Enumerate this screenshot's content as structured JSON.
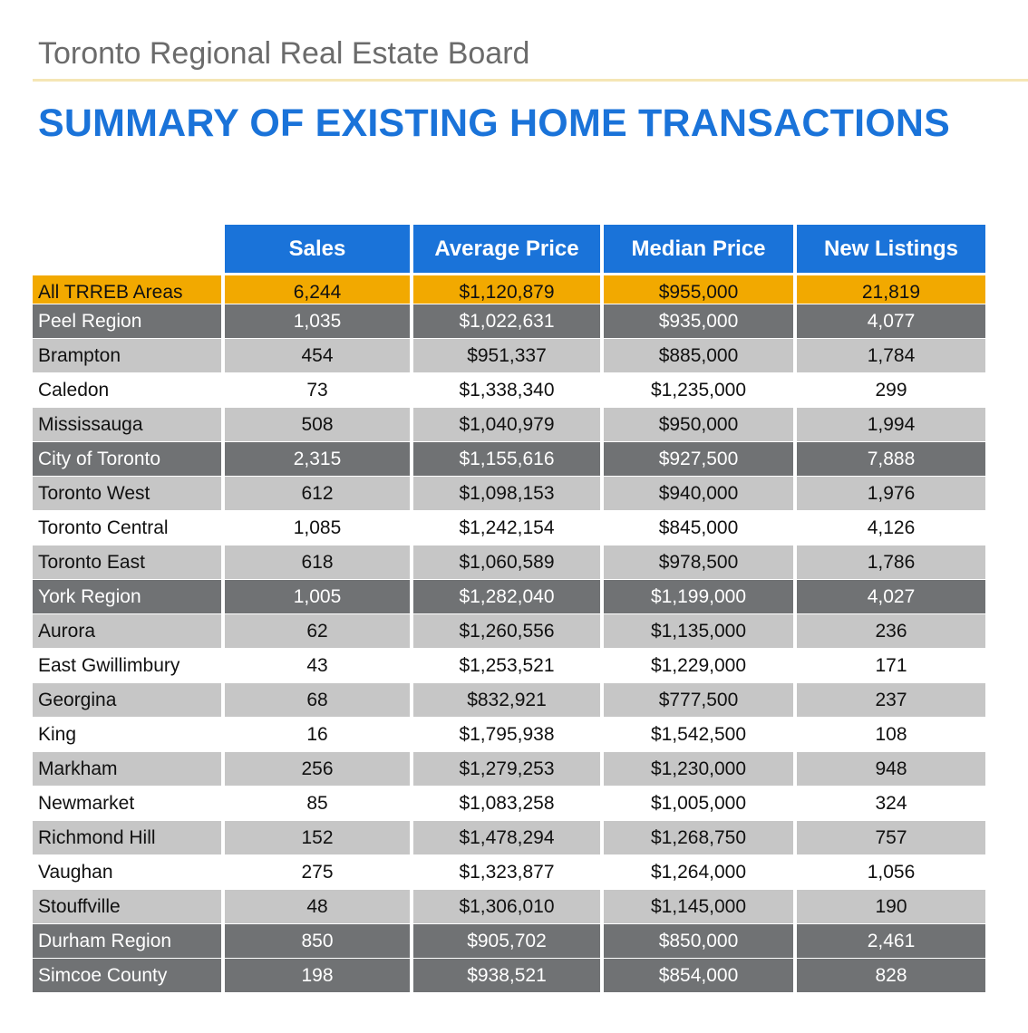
{
  "header": {
    "org": "Toronto Regional Real Estate Board",
    "title": "SUMMARY OF EXISTING HOME TRANSACTIONS"
  },
  "table": {
    "columns": [
      "Sales",
      "Average Price",
      "Median Price",
      "New Listings"
    ],
    "rows": [
      {
        "area": "All TRREB Areas",
        "sales": "6,244",
        "avg": "$1,120,879",
        "median": "$955,000",
        "listings": "21,819",
        "style": "orange"
      },
      {
        "area": "Peel Region",
        "sales": "1,035",
        "avg": "$1,022,631",
        "median": "$935,000",
        "listings": "4,077",
        "style": "dark"
      },
      {
        "area": "Brampton",
        "sales": "454",
        "avg": "$951,337",
        "median": "$885,000",
        "listings": "1,784",
        "style": "light"
      },
      {
        "area": "Caledon",
        "sales": "73",
        "avg": "$1,338,340",
        "median": "$1,235,000",
        "listings": "299",
        "style": "white"
      },
      {
        "area": "Mississauga",
        "sales": "508",
        "avg": "$1,040,979",
        "median": "$950,000",
        "listings": "1,994",
        "style": "light"
      },
      {
        "area": "City of Toronto",
        "sales": "2,315",
        "avg": "$1,155,616",
        "median": "$927,500",
        "listings": "7,888",
        "style": "dark"
      },
      {
        "area": "Toronto West",
        "sales": "612",
        "avg": "$1,098,153",
        "median": "$940,000",
        "listings": "1,976",
        "style": "light"
      },
      {
        "area": "Toronto Central",
        "sales": "1,085",
        "avg": "$1,242,154",
        "median": "$845,000",
        "listings": "4,126",
        "style": "white"
      },
      {
        "area": "Toronto East",
        "sales": "618",
        "avg": "$1,060,589",
        "median": "$978,500",
        "listings": "1,786",
        "style": "light"
      },
      {
        "area": "York Region",
        "sales": "1,005",
        "avg": "$1,282,040",
        "median": "$1,199,000",
        "listings": "4,027",
        "style": "dark"
      },
      {
        "area": "Aurora",
        "sales": "62",
        "avg": "$1,260,556",
        "median": "$1,135,000",
        "listings": "236",
        "style": "light"
      },
      {
        "area": "East Gwillimbury",
        "sales": "43",
        "avg": "$1,253,521",
        "median": "$1,229,000",
        "listings": "171",
        "style": "white"
      },
      {
        "area": "Georgina",
        "sales": "68",
        "avg": "$832,921",
        "median": "$777,500",
        "listings": "237",
        "style": "light"
      },
      {
        "area": "King",
        "sales": "16",
        "avg": "$1,795,938",
        "median": "$1,542,500",
        "listings": "108",
        "style": "white"
      },
      {
        "area": "Markham",
        "sales": "256",
        "avg": "$1,279,253",
        "median": "$1,230,000",
        "listings": "948",
        "style": "light"
      },
      {
        "area": "Newmarket",
        "sales": "85",
        "avg": "$1,083,258",
        "median": "$1,005,000",
        "listings": "324",
        "style": "white"
      },
      {
        "area": "Richmond Hill",
        "sales": "152",
        "avg": "$1,478,294",
        "median": "$1,268,750",
        "listings": "757",
        "style": "light"
      },
      {
        "area": "Vaughan",
        "sales": "275",
        "avg": "$1,323,877",
        "median": "$1,264,000",
        "listings": "1,056",
        "style": "white"
      },
      {
        "area": "Stouffville",
        "sales": "48",
        "avg": "$1,306,010",
        "median": "$1,145,000",
        "listings": "190",
        "style": "light"
      },
      {
        "area": "Durham Region",
        "sales": "850",
        "avg": "$905,702",
        "median": "$850,000",
        "listings": "2,461",
        "style": "dark"
      },
      {
        "area": "Simcoe County",
        "sales": "198",
        "avg": "$938,521",
        "median": "$854,000",
        "listings": "828",
        "style": "dark"
      }
    ]
  }
}
